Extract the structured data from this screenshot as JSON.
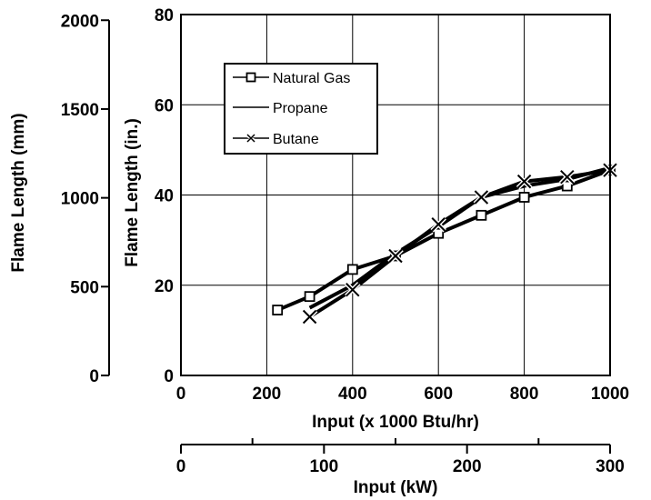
{
  "chart_data": {
    "type": "line",
    "title": "",
    "xlabel": "Input (x 1000 Btu/hr)",
    "ylabel": "Flame Length (in.)",
    "xlim": [
      0,
      1000
    ],
    "ylim": [
      0,
      80
    ],
    "x_ticks": [
      0,
      200,
      400,
      600,
      800,
      1000
    ],
    "x_tick_labels": [
      "0",
      "200",
      "400",
      "600",
      "800",
      "1000"
    ],
    "y_ticks": [
      0,
      20,
      40,
      60,
      80
    ],
    "y_tick_labels": [
      "0",
      "20",
      "40",
      "60",
      "80"
    ],
    "grid": true,
    "legend_position": "top-left",
    "secondary_x": {
      "label": "Input (kW)",
      "range": [
        0,
        300
      ],
      "ticks": [
        0,
        100,
        200,
        300
      ],
      "tick_labels": [
        "0",
        "100",
        "200",
        "300"
      ],
      "minor_ticks": [
        50,
        150,
        250
      ]
    },
    "secondary_y": {
      "label": "Flame Length (mm)",
      "range": [
        0,
        2032
      ],
      "ticks": [
        0,
        500,
        1000,
        1500,
        2000
      ],
      "tick_labels": [
        "0",
        "500",
        "1000",
        "1500",
        "2000"
      ]
    },
    "series": [
      {
        "name": "Natural Gas",
        "marker": "square",
        "x": [
          225,
          300,
          400,
          500,
          600,
          700,
          800,
          900,
          1000
        ],
        "y": [
          14.5,
          17.5,
          23.5,
          26.5,
          31.5,
          35.5,
          39.5,
          42,
          45.5
        ]
      },
      {
        "name": "Propane",
        "marker": "none",
        "x": [
          300,
          400,
          500,
          600,
          700,
          800,
          900,
          1000
        ],
        "y": [
          15,
          20,
          27,
          33,
          39.5,
          42,
          43.5,
          46
        ]
      },
      {
        "name": "Butane",
        "marker": "x",
        "x": [
          300,
          400,
          500,
          600,
          700,
          800,
          900,
          1000
        ],
        "y": [
          13,
          19,
          26.5,
          33.5,
          39.5,
          43,
          44,
          45.5
        ]
      }
    ]
  }
}
